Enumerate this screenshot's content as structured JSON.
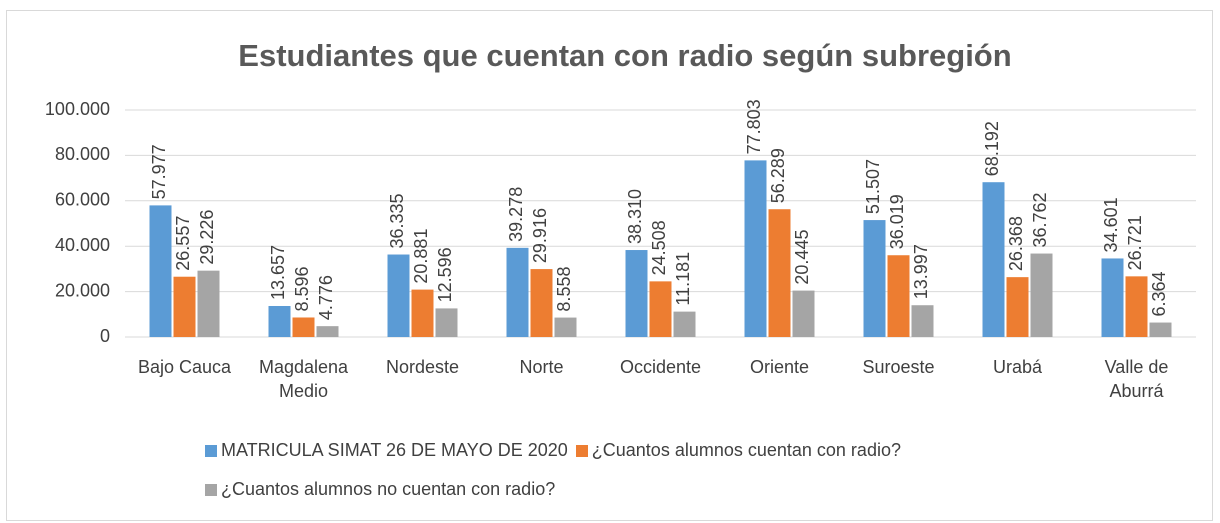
{
  "chart_data": {
    "type": "bar",
    "title": "Estudiantes que cuentan con radio según subregión",
    "categories": [
      "Bajo Cauca",
      "Magdalena Medio",
      "Nordeste",
      "Norte",
      "Occidente",
      "Oriente",
      "Suroeste",
      "Urabá",
      "Valle de Aburrá"
    ],
    "series": [
      {
        "name": "MATRICULA SIMAT 26 DE MAYO DE 2020",
        "color": "#5b9bd5",
        "values": [
          57977,
          13657,
          36335,
          39278,
          38310,
          77803,
          51507,
          68192,
          34601
        ],
        "value_labels": [
          "57.977",
          "13.657",
          "36.335",
          "39.278",
          "38.310",
          "77.803",
          "51.507",
          "68.192",
          "34.601"
        ]
      },
      {
        "name": "¿Cuantos alumnos cuentan con radio?",
        "color": "#ed7d31",
        "values": [
          26557,
          8596,
          20881,
          29916,
          24508,
          56289,
          36019,
          26368,
          26721
        ],
        "value_labels": [
          "26.557",
          "8.596",
          "20.881",
          "29.916",
          "24.508",
          "56.289",
          "36.019",
          "26.368",
          "26.721"
        ]
      },
      {
        "name": "¿Cuantos alumnos no cuentan con radio?",
        "color": "#a5a5a5",
        "values": [
          29226,
          4776,
          12596,
          8558,
          11181,
          20445,
          13997,
          36762,
          6364
        ],
        "value_labels": [
          "29.226",
          "4.776",
          "12.596",
          "8.558",
          "11.181",
          "20.445",
          "13.997",
          "36.762",
          "6.364"
        ]
      }
    ],
    "ylim": [
      0,
      100000
    ],
    "yticks": [
      0,
      {
        "value": 20000,
        "label": "20.000"
      },
      {
        "value": 40000,
        "label": "40.000"
      },
      {
        "value": 60000,
        "label": "60.000"
      },
      {
        "value": 80000,
        "label": "80.000"
      },
      {
        "value": 100000,
        "label": "100.000"
      }
    ],
    "grid": true
  }
}
